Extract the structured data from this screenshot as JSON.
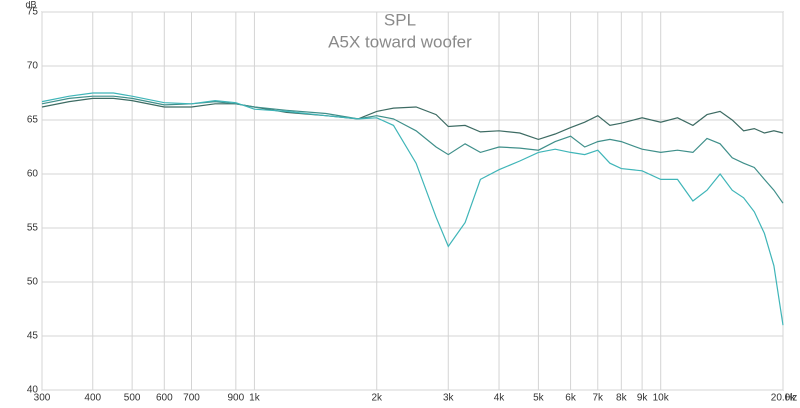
{
  "chart_data": {
    "type": "line",
    "title": "SPL",
    "subtitle": "A5X toward woofer",
    "y_label": "dB",
    "x_label": "Hz",
    "log_x": true,
    "grid": true,
    "xlim": [
      300,
      20000
    ],
    "ylim": [
      40,
      75
    ],
    "yticks": [
      40,
      45,
      50,
      55,
      60,
      65,
      70,
      75
    ],
    "xticks": [
      300,
      400,
      500,
      600,
      700,
      900,
      {
        "value": 1000,
        "label": "1k"
      },
      {
        "value": 2000,
        "label": "2k"
      },
      {
        "value": 3000,
        "label": "3k"
      },
      {
        "value": 4000,
        "label": "4k"
      },
      {
        "value": 5000,
        "label": "5k"
      },
      {
        "value": 6000,
        "label": "6k"
      },
      {
        "value": 7000,
        "label": "7k"
      },
      {
        "value": 8000,
        "label": "8k"
      },
      {
        "value": 9000,
        "label": "9k"
      },
      {
        "value": 10000,
        "label": "10k"
      },
      {
        "value": 20000,
        "label": "20.0k"
      }
    ],
    "x": [
      300,
      350,
      400,
      450,
      500,
      600,
      700,
      800,
      900,
      1000,
      1200,
      1500,
      1800,
      2000,
      2200,
      2500,
      2800,
      3000,
      3300,
      3600,
      4000,
      4500,
      5000,
      5500,
      6000,
      6500,
      7000,
      7500,
      8000,
      9000,
      10000,
      11000,
      12000,
      13000,
      14000,
      15000,
      16000,
      17000,
      18000,
      19000,
      20000
    ],
    "series": [
      {
        "color": "#3d6b63",
        "values": [
          66.2,
          66.7,
          67.0,
          67.0,
          66.8,
          66.2,
          66.2,
          66.5,
          66.5,
          66.2,
          65.7,
          65.4,
          65.1,
          65.8,
          66.1,
          66.2,
          65.5,
          64.4,
          64.5,
          63.9,
          64.0,
          63.8,
          63.2,
          63.7,
          64.3,
          64.8,
          65.4,
          64.5,
          64.7,
          65.2,
          64.8,
          65.2,
          64.5,
          65.5,
          65.8,
          65.0,
          64.0,
          64.2,
          63.8,
          64.0,
          63.8
        ]
      },
      {
        "color": "#3f8f8a",
        "values": [
          66.5,
          67.0,
          67.2,
          67.2,
          67.0,
          66.4,
          66.5,
          66.7,
          66.5,
          66.2,
          65.9,
          65.6,
          65.1,
          65.4,
          65.1,
          64.0,
          62.5,
          61.8,
          62.8,
          62.0,
          62.5,
          62.4,
          62.2,
          63.0,
          63.5,
          62.5,
          63.0,
          63.2,
          63.0,
          62.3,
          62.0,
          62.2,
          62.0,
          63.3,
          62.8,
          61.5,
          61.0,
          60.6,
          59.5,
          58.5,
          57.3
        ]
      },
      {
        "color": "#3fb5b8",
        "values": [
          66.7,
          67.2,
          67.5,
          67.5,
          67.2,
          66.6,
          66.5,
          66.8,
          66.6,
          66.0,
          65.8,
          65.4,
          65.1,
          65.2,
          64.5,
          61.0,
          56.0,
          53.3,
          55.5,
          59.5,
          60.4,
          61.2,
          62.0,
          62.3,
          62.0,
          61.8,
          62.2,
          61.0,
          60.5,
          60.3,
          59.5,
          59.5,
          57.5,
          58.5,
          60.0,
          58.5,
          57.8,
          56.5,
          54.5,
          51.5,
          46.0
        ]
      }
    ]
  }
}
